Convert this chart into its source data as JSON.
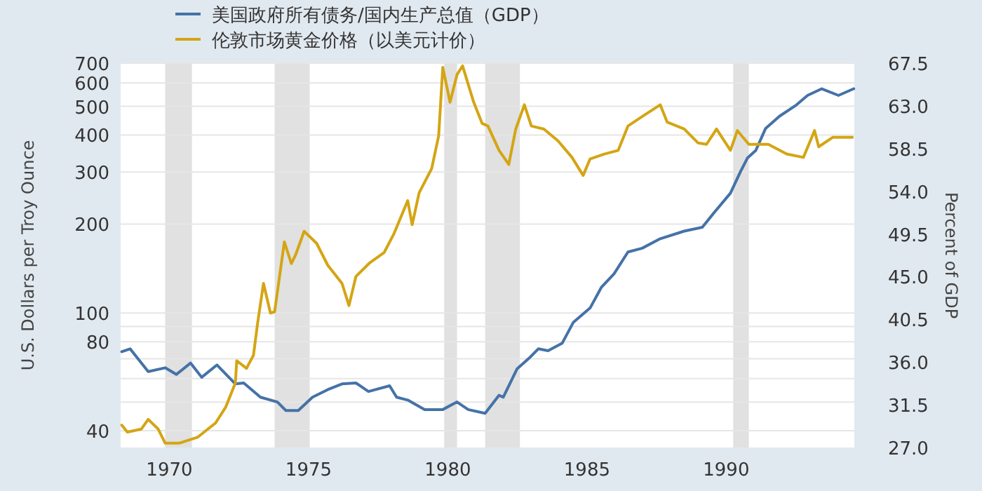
{
  "chart_data": {
    "type": "line",
    "ylabel": "U.S. Dollars per Troy Ounce",
    "y2label": "Percent of GDP",
    "log": "y",
    "grid": "y",
    "legend": "top left",
    "line_style": "solid",
    "marker": "none",
    "xlim": [
      1968.25,
      1994.6
    ],
    "xticks": [
      1970,
      1975,
      1980,
      1985,
      1990
    ],
    "ylim": [
      35.1,
      700
    ],
    "yticks": [
      40,
      {
        "value": 50,
        "label": null
      },
      {
        "value": 60,
        "label": null
      },
      {
        "value": 70,
        "label": null
      },
      80,
      {
        "value": 90,
        "label": null
      },
      100,
      200,
      300,
      400,
      500,
      600,
      700
    ],
    "y2lim": [
      27,
      67.5
    ],
    "y2ticks": [
      {
        "value": 27,
        "label": "27.0"
      },
      31.5,
      {
        "value": 36,
        "label": "36.0"
      },
      40.5,
      {
        "value": 45,
        "label": "45.0"
      },
      49.5,
      {
        "value": 54,
        "label": "54.0"
      },
      58.5,
      {
        "value": 63,
        "label": "63.0"
      },
      67.5
    ],
    "bands": [
      {
        "axis": "x",
        "from": 1969.85,
        "to": 1970.81,
        "color": "#e1e1e1"
      },
      {
        "axis": "x",
        "from": 1973.78,
        "to": 1975.04,
        "color": "#e1e1e1"
      },
      {
        "axis": "x",
        "from": 1979.87,
        "to": 1980.33,
        "color": "#e1e1e1"
      },
      {
        "axis": "x",
        "from": 1981.34,
        "to": 1982.59,
        "color": "#e1e1e1"
      },
      {
        "axis": "x",
        "from": 1990.25,
        "to": 1990.81,
        "color": "#e1e1e1"
      }
    ],
    "series": [
      {
        "name": "美国政府所有债务/国内生产总值（GDP）",
        "color": "#4572a7",
        "axis": "y2",
        "x": [
          1968.29,
          1968.59,
          1969.24,
          1969.85,
          1970.25,
          1970.76,
          1971.16,
          1971.71,
          1972.37,
          1972.67,
          1973.27,
          1973.88,
          1974.18,
          1974.63,
          1975.14,
          1975.69,
          1976.2,
          1976.7,
          1977.15,
          1977.91,
          1978.16,
          1978.56,
          1979.17,
          1979.82,
          1980.33,
          1980.73,
          1981.34,
          1981.84,
          1981.99,
          1982.49,
          1982.95,
          1983.25,
          1983.6,
          1984.11,
          1984.51,
          1985.11,
          1985.52,
          1985.97,
          1986.47,
          1986.98,
          1987.63,
          1988.49,
          1989.14,
          1989.55,
          1990.15,
          1990.5,
          1990.76,
          1991.06,
          1991.41,
          1991.91,
          1992.52,
          1992.92,
          1993.43,
          1994.03,
          1994.58
        ],
        "values": [
          37.1,
          37.4,
          35.0,
          35.4,
          34.7,
          35.9,
          34.4,
          35.7,
          33.7,
          33.8,
          32.3,
          31.8,
          30.9,
          30.9,
          32.3,
          33.1,
          33.7,
          33.8,
          32.9,
          33.5,
          32.3,
          32.0,
          31.0,
          31.0,
          31.8,
          31.0,
          30.6,
          32.5,
          32.3,
          35.3,
          36.5,
          37.4,
          37.2,
          38.0,
          40.2,
          41.7,
          43.9,
          45.3,
          47.6,
          48.0,
          49.0,
          49.8,
          50.2,
          51.7,
          53.8,
          56.0,
          57.5,
          58.3,
          60.6,
          61.9,
          63.1,
          64.1,
          64.8,
          64.1,
          64.8
        ]
      },
      {
        "name": "伦敦市场黄金价格（以美元计价）",
        "color": "#d4a514",
        "x": [
          1968.29,
          1968.49,
          1968.99,
          1969.24,
          1969.6,
          1969.85,
          1970.35,
          1971.01,
          1971.66,
          1972.02,
          1972.37,
          1972.42,
          1972.77,
          1973.02,
          1973.17,
          1973.38,
          1973.63,
          1973.78,
          1974.13,
          1974.38,
          1974.53,
          1974.84,
          1975.29,
          1975.69,
          1976.2,
          1976.45,
          1976.7,
          1977.2,
          1977.71,
          1978.06,
          1978.56,
          1978.72,
          1978.97,
          1979.42,
          1979.67,
          1979.82,
          1980.08,
          1980.33,
          1980.53,
          1980.93,
          1981.23,
          1981.44,
          1981.84,
          1982.19,
          1982.44,
          1982.75,
          1983.0,
          1983.45,
          1983.95,
          1984.46,
          1984.86,
          1985.11,
          1985.62,
          1986.12,
          1986.47,
          1986.98,
          1987.63,
          1987.88,
          1988.49,
          1988.99,
          1989.29,
          1989.65,
          1990.15,
          1990.4,
          1990.81,
          1991.51,
          1992.17,
          1992.77,
          1993.17,
          1993.32,
          1993.83,
          1994.53
        ],
        "values": [
          41.8,
          39.6,
          40.5,
          43.7,
          40.5,
          36.3,
          36.3,
          38,
          42.5,
          48,
          58,
          69,
          65,
          72,
          92.5,
          126,
          100,
          101,
          174,
          147,
          157,
          189,
          172,
          145,
          126,
          106,
          133,
          148,
          160,
          185,
          240,
          199,
          255,
          308,
          397,
          677,
          516,
          640,
          685,
          516,
          438,
          429,
          355,
          318,
          419,
          506,
          429,
          419,
          383,
          336,
          292,
          332,
          345,
          355,
          429,
          462,
          506,
          442,
          419,
          376,
          372,
          419,
          355,
          414,
          372,
          372,
          345,
          336,
          414,
          365,
          393,
          393
        ]
      }
    ]
  }
}
